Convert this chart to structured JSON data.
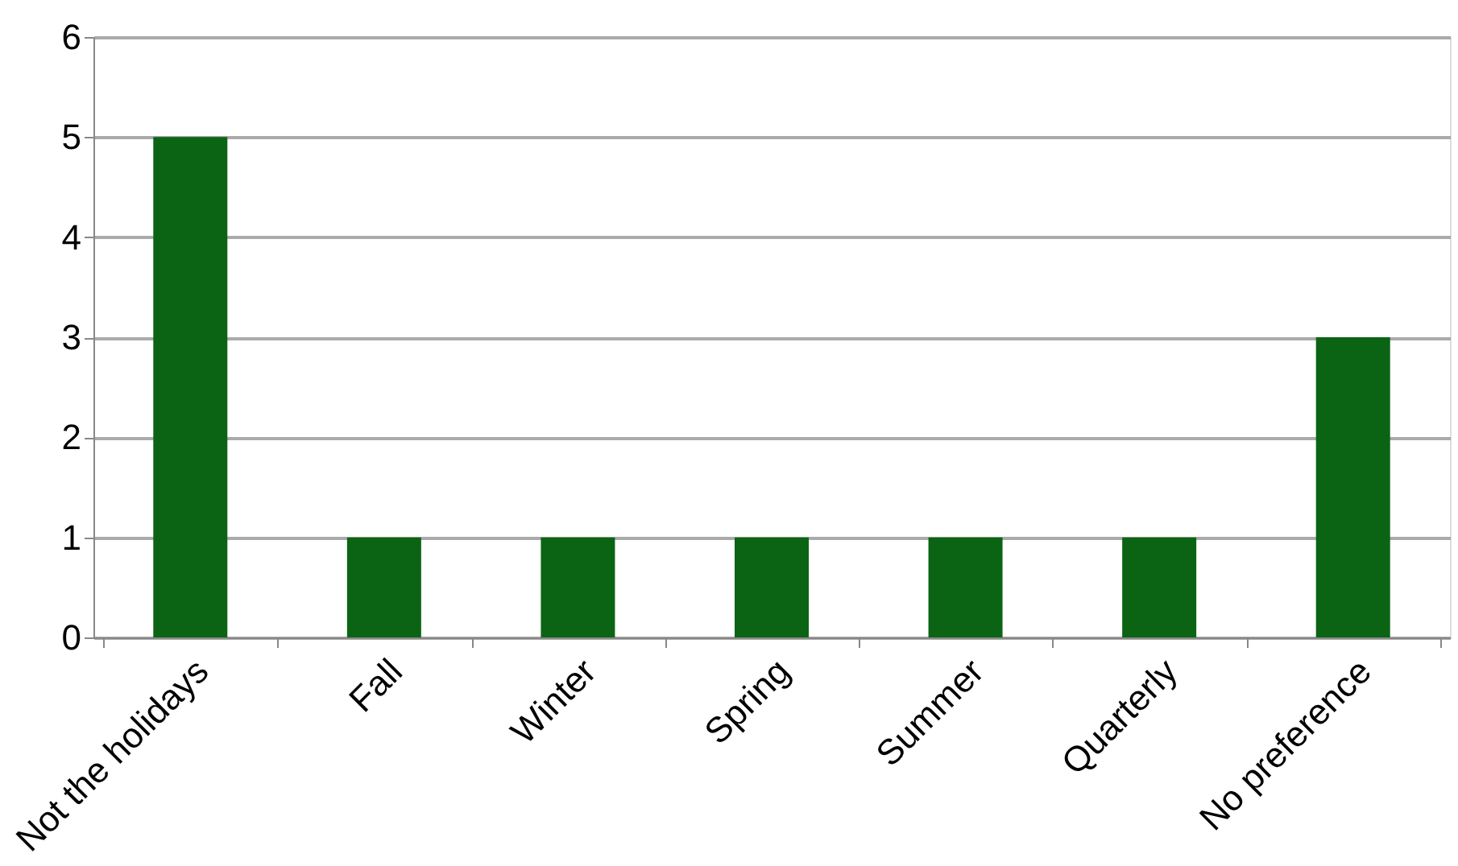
{
  "chart_data": {
    "type": "bar",
    "categories": [
      "Not the holidays",
      "Fall",
      "Winter",
      "Spring",
      "Summer",
      "Quarterly",
      "No preference"
    ],
    "values": [
      5,
      1,
      1,
      1,
      1,
      1,
      3
    ],
    "color": "#0b6414",
    "ylim": [
      0,
      6
    ],
    "yticks": [
      0,
      1,
      2,
      3,
      4,
      5,
      6
    ],
    "grid": "y"
  }
}
